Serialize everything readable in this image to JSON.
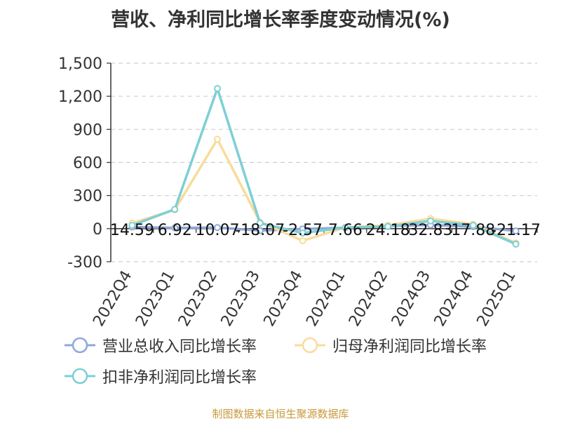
{
  "title": "营收、净利同比增长率季度变动情况(%)",
  "source": "制图数据来自恒生聚源数据库",
  "unit_label": "%",
  "chart_data": {
    "type": "line",
    "categories": [
      "2022Q4",
      "2023Q1",
      "2023Q2",
      "2023Q3",
      "2023Q4",
      "2024Q1",
      "2024Q2",
      "2024Q3",
      "2024Q4",
      "2025Q1"
    ],
    "y_ticks": [
      "1,500",
      "1,200",
      "900",
      "600",
      "300",
      "0",
      "-300"
    ],
    "ylim": [
      -300,
      1500
    ],
    "grid": true,
    "legend_position": "bottom",
    "series": [
      {
        "name": "营业总收入同比增长率",
        "color": "#8fa9d8",
        "values": [
          14.59,
          6.92,
          10.07,
          -18.07,
          -2.57,
          7.66,
          24.18,
          32.83,
          17.88,
          -21.17
        ],
        "labels": [
          "14.59",
          "6.92",
          "10.07",
          "-18.07",
          "-2.57",
          "7.66",
          "24.18",
          "32.83",
          "17.88",
          "-21.17"
        ]
      },
      {
        "name": "归母净利润同比增长率",
        "color": "#f8dc9c",
        "values": [
          50,
          170,
          810,
          60,
          -110,
          10,
          30,
          90,
          40,
          -130
        ]
      },
      {
        "name": "扣非净利润同比增长率",
        "color": "#7ecfd4",
        "values": [
          30,
          175,
          1270,
          50,
          -40,
          10,
          20,
          70,
          30,
          -140
        ]
      }
    ]
  }
}
